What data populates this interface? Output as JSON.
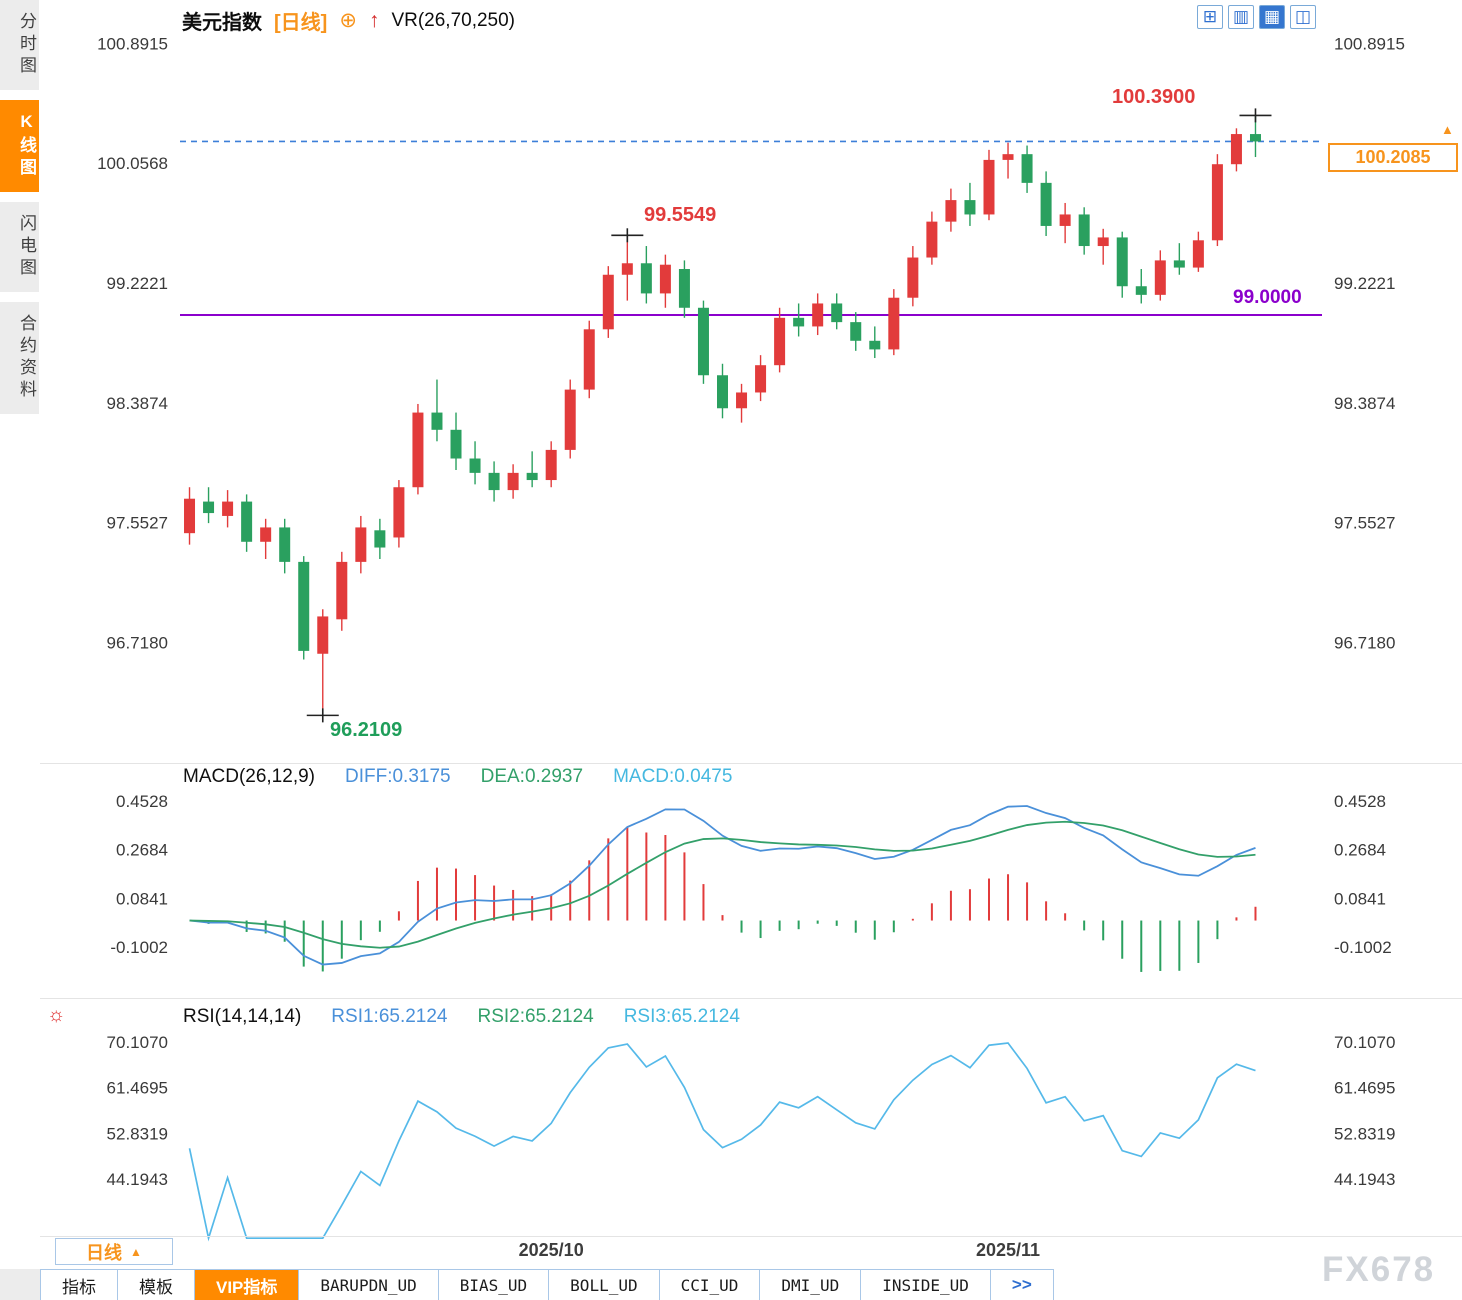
{
  "header": {
    "symbol": "美元指数",
    "period_tag": "[日线]",
    "add_icon": "⊕",
    "trend_icon": "↑",
    "indicator_label": "VR(26,70,250)"
  },
  "toolbar": {
    "buttons": [
      {
        "name": "pane-grid",
        "glyph": "⊞"
      },
      {
        "name": "pane-columns",
        "glyph": "▥"
      },
      {
        "name": "chart-panel",
        "glyph": "▦"
      },
      {
        "name": "pane-split",
        "glyph": "◫"
      }
    ]
  },
  "sidebar": {
    "items": [
      {
        "label": "分时图",
        "active": false
      },
      {
        "label": "K线图",
        "active": true
      },
      {
        "label": "闪电图",
        "active": false
      },
      {
        "label": "合约资料",
        "active": false
      }
    ]
  },
  "main_panel": {
    "annotations": {
      "high_label": "100.3900",
      "peak_label": "99.5549",
      "low_label": "96.2109",
      "support_label": "99.0000",
      "last_price": "100.2085",
      "price_arrow": "▲"
    }
  },
  "macd_panel": {
    "title": "MACD(26,12,9)",
    "diff_label": "DIFF:0.3175",
    "dea_label": "DEA:0.2937",
    "macd_label": "MACD:0.0475"
  },
  "rsi_panel": {
    "title": "RSI(14,14,14)",
    "rsi1_label": "RSI1:65.2124",
    "rsi2_label": "RSI2:65.2124",
    "rsi3_label": "RSI3:65.2124",
    "icon": "☼"
  },
  "footer": {
    "period_selector": "日线",
    "period_arrow": "▲",
    "x_labels": [
      {
        "text": "2025/10",
        "index": 19
      },
      {
        "text": "2025/11",
        "index": 43
      }
    ],
    "watermark": "FX678",
    "tabs": [
      {
        "label": "指标"
      },
      {
        "label": "模板"
      },
      {
        "label": "VIP指标"
      },
      {
        "label": "BARUPDN_UD"
      },
      {
        "label": "BIAS_UD"
      },
      {
        "label": "BOLL_UD"
      },
      {
        "label": "CCI_UD"
      },
      {
        "label": "DMI_UD"
      },
      {
        "label": "INSIDE_UD"
      },
      {
        "label": ">>"
      }
    ]
  },
  "chart_data": {
    "type": "candlestick",
    "title": "美元指数 日线",
    "ohlc_format": [
      "open",
      "high",
      "low",
      "close"
    ],
    "candles": [
      [
        97.48,
        97.8,
        97.4,
        97.72
      ],
      [
        97.7,
        97.8,
        97.55,
        97.62
      ],
      [
        97.6,
        97.78,
        97.52,
        97.7
      ],
      [
        97.7,
        97.75,
        97.35,
        97.42
      ],
      [
        97.42,
        97.58,
        97.3,
        97.52
      ],
      [
        97.52,
        97.58,
        97.2,
        97.28
      ],
      [
        97.28,
        97.32,
        96.6,
        96.66
      ],
      [
        96.64,
        96.95,
        96.2109,
        96.9
      ],
      [
        96.88,
        97.35,
        96.8,
        97.28
      ],
      [
        97.28,
        97.6,
        97.2,
        97.52
      ],
      [
        97.5,
        97.58,
        97.3,
        97.38
      ],
      [
        97.45,
        97.85,
        97.38,
        97.8
      ],
      [
        97.8,
        98.38,
        97.75,
        98.32
      ],
      [
        98.32,
        98.55,
        98.12,
        98.2
      ],
      [
        98.2,
        98.32,
        97.92,
        98.0
      ],
      [
        98.0,
        98.12,
        97.82,
        97.9
      ],
      [
        97.9,
        97.98,
        97.7,
        97.78
      ],
      [
        97.78,
        97.96,
        97.72,
        97.9
      ],
      [
        97.9,
        98.05,
        97.8,
        97.85
      ],
      [
        97.85,
        98.12,
        97.8,
        98.06
      ],
      [
        98.06,
        98.55,
        98.0,
        98.48
      ],
      [
        98.48,
        98.96,
        98.42,
        98.9
      ],
      [
        98.9,
        99.34,
        98.84,
        99.28
      ],
      [
        99.28,
        99.5549,
        99.1,
        99.36
      ],
      [
        99.36,
        99.48,
        99.08,
        99.15
      ],
      [
        99.15,
        99.42,
        99.05,
        99.35
      ],
      [
        99.32,
        99.38,
        98.98,
        99.05
      ],
      [
        99.05,
        99.1,
        98.52,
        98.58
      ],
      [
        98.58,
        98.66,
        98.28,
        98.35
      ],
      [
        98.35,
        98.52,
        98.25,
        98.46
      ],
      [
        98.46,
        98.72,
        98.4,
        98.65
      ],
      [
        98.65,
        99.05,
        98.6,
        98.98
      ],
      [
        98.98,
        99.08,
        98.85,
        98.92
      ],
      [
        98.92,
        99.15,
        98.86,
        99.08
      ],
      [
        99.08,
        99.15,
        98.9,
        98.95
      ],
      [
        98.95,
        99.02,
        98.75,
        98.82
      ],
      [
        98.82,
        98.92,
        98.7,
        98.76
      ],
      [
        98.76,
        99.18,
        98.72,
        99.12
      ],
      [
        99.12,
        99.48,
        99.06,
        99.4
      ],
      [
        99.4,
        99.72,
        99.35,
        99.65
      ],
      [
        99.65,
        99.88,
        99.58,
        99.8
      ],
      [
        99.8,
        99.92,
        99.62,
        99.7
      ],
      [
        99.7,
        100.15,
        99.66,
        100.08
      ],
      [
        100.08,
        100.2,
        99.95,
        100.12
      ],
      [
        100.12,
        100.18,
        99.85,
        99.92
      ],
      [
        99.92,
        100.0,
        99.55,
        99.62
      ],
      [
        99.62,
        99.78,
        99.5,
        99.7
      ],
      [
        99.7,
        99.75,
        99.42,
        99.48
      ],
      [
        99.48,
        99.6,
        99.35,
        99.54
      ],
      [
        99.54,
        99.58,
        99.12,
        99.2
      ],
      [
        99.2,
        99.32,
        99.08,
        99.14
      ],
      [
        99.14,
        99.45,
        99.1,
        99.38
      ],
      [
        99.38,
        99.5,
        99.28,
        99.33
      ],
      [
        99.33,
        99.58,
        99.3,
        99.52
      ],
      [
        99.52,
        100.12,
        99.48,
        100.05
      ],
      [
        100.05,
        100.3,
        100.0,
        100.26
      ],
      [
        100.26,
        100.39,
        100.1,
        100.2085
      ]
    ],
    "main_y_ticks": [
      "100.8915",
      "100.0568",
      "99.2221",
      "98.3874",
      "97.5527",
      "96.7180"
    ],
    "main_ylim": [
      95.9,
      100.95
    ],
    "macd_y_ticks": [
      "0.4528",
      "0.2684",
      "0.0841",
      "-0.1002"
    ],
    "rsi_y_ticks": [
      "70.1070",
      "61.4695",
      "52.8319",
      "44.1943"
    ],
    "x_tick_labels": [
      "2025/10",
      "2025/11"
    ],
    "support_line": 99.0,
    "last_price": 100.2085,
    "marked_high": 100.39,
    "marked_peak": 99.5549,
    "marked_low": 96.2109,
    "low_index": 7,
    "peak_index": 23,
    "macd_params": [
      26,
      12,
      9
    ],
    "macd_current": {
      "diff": 0.3175,
      "dea": 0.2937,
      "macd": 0.0475
    },
    "rsi_params": [
      14,
      14,
      14
    ],
    "rsi_current": 65.2124,
    "colors": {
      "up": "#e23b3b",
      "down": "#2aa05f",
      "diff": "#4a90d9",
      "dea": "#33a06a",
      "rsi": "#55b9e9",
      "support": "#8b00cc",
      "last_price_line": "#3c7fd8",
      "accent": "#f7941d"
    }
  }
}
